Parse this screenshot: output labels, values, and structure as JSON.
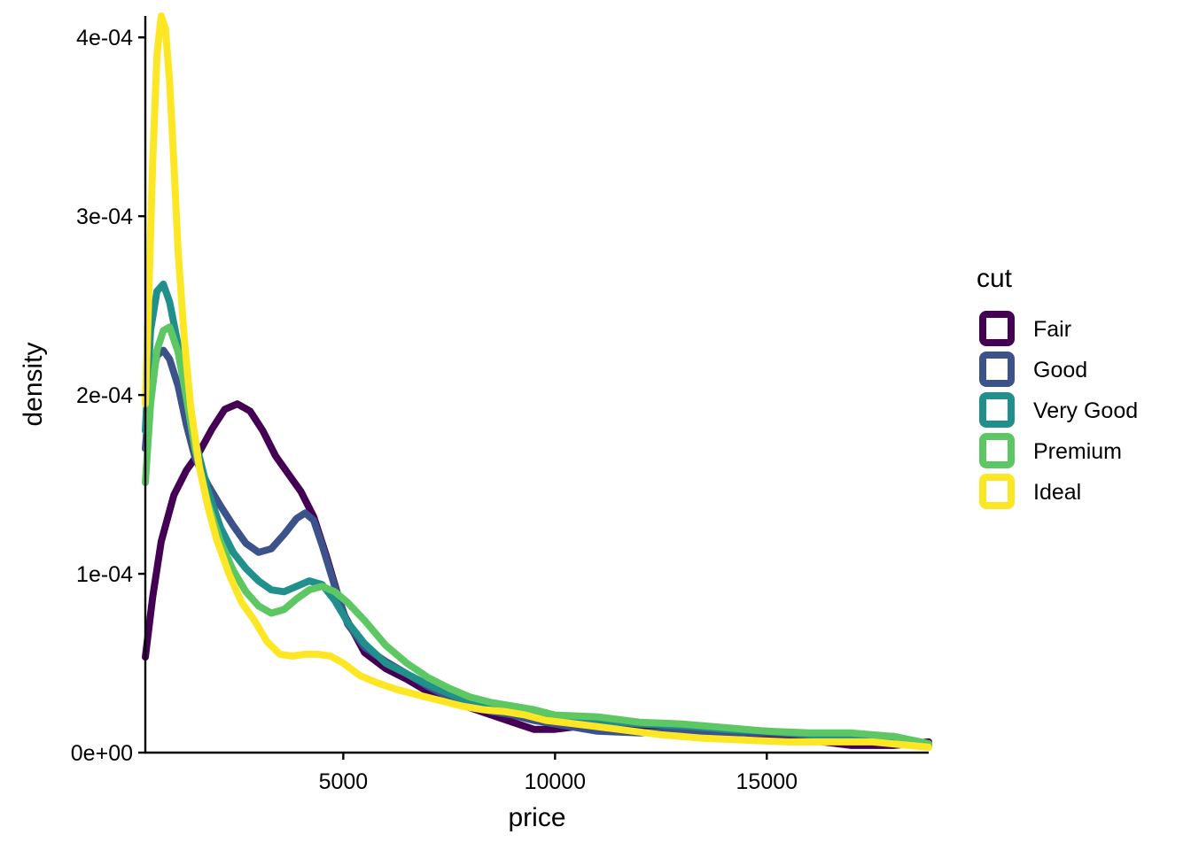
{
  "chart_data": {
    "type": "line",
    "geom": "density",
    "xlabel": "price",
    "ylabel": "density",
    "xlim": [
      326,
      18823
    ],
    "ylim": [
      0,
      0.000412
    ],
    "x_ticks": [
      5000,
      10000,
      15000
    ],
    "x_tick_labels": [
      "5000",
      "10000",
      "15000"
    ],
    "y_ticks": [
      0,
      0.0001,
      0.0002,
      0.0003,
      0.0004
    ],
    "y_tick_labels": [
      "0e+00",
      "1e-04",
      "2e-04",
      "3e-04",
      "4e-04"
    ],
    "grid": false,
    "legend": {
      "title": "cut",
      "position": "right"
    },
    "series": [
      {
        "name": "Fair",
        "color": "#440154",
        "points": [
          [
            326,
            5.34e-05
          ],
          [
            500,
            8.7e-05
          ],
          [
            700,
            0.000118
          ],
          [
            1000,
            0.000144
          ],
          [
            1300,
            0.000158
          ],
          [
            1600,
            0.000168
          ],
          [
            1900,
            0.000181
          ],
          [
            2200,
            0.000192
          ],
          [
            2500,
            0.000195
          ],
          [
            2800,
            0.000191
          ],
          [
            3100,
            0.00018
          ],
          [
            3400,
            0.000166
          ],
          [
            3700,
            0.000156
          ],
          [
            4000,
            0.000146
          ],
          [
            4300,
            0.000132
          ],
          [
            4600,
            0.00011
          ],
          [
            5000,
            7.8e-05
          ],
          [
            5500,
            5.6e-05
          ],
          [
            6000,
            4.7e-05
          ],
          [
            6500,
            4.1e-05
          ],
          [
            7000,
            3.4e-05
          ],
          [
            7500,
            2.9e-05
          ],
          [
            8000,
            2.5e-05
          ],
          [
            8500,
            2.1e-05
          ],
          [
            9000,
            1.7e-05
          ],
          [
            9500,
            1.3e-05
          ],
          [
            10000,
            1.3e-05
          ],
          [
            11000,
            1.6e-05
          ],
          [
            12000,
            1.5e-05
          ],
          [
            13000,
            1.4e-05
          ],
          [
            14000,
            1.2e-05
          ],
          [
            15000,
            1e-05
          ],
          [
            16000,
            7e-06
          ],
          [
            17000,
            4e-06
          ],
          [
            18000,
            4e-06
          ],
          [
            18823,
            6e-06
          ]
        ]
      },
      {
        "name": "Good",
        "color": "#3B528B",
        "points": [
          [
            326,
            0.00017
          ],
          [
            450,
            0.000205
          ],
          [
            600,
            0.000222
          ],
          [
            750,
            0.000225
          ],
          [
            900,
            0.00022
          ],
          [
            1100,
            0.000205
          ],
          [
            1300,
            0.000183
          ],
          [
            1500,
            0.000165
          ],
          [
            1800,
            0.00015
          ],
          [
            2100,
            0.000138
          ],
          [
            2400,
            0.000127
          ],
          [
            2700,
            0.000117
          ],
          [
            3000,
            0.000112
          ],
          [
            3300,
            0.000114
          ],
          [
            3600,
            0.000122
          ],
          [
            3900,
            0.000131
          ],
          [
            4100,
            0.000134
          ],
          [
            4300,
            0.00013
          ],
          [
            4500,
            0.000116
          ],
          [
            4800,
            9.3e-05
          ],
          [
            5100,
            7.2e-05
          ],
          [
            5500,
            5.9e-05
          ],
          [
            6000,
            5.1e-05
          ],
          [
            6500,
            4.4e-05
          ],
          [
            7000,
            3.7e-05
          ],
          [
            7500,
            3.1e-05
          ],
          [
            8000,
            2.6e-05
          ],
          [
            8500,
            2.3e-05
          ],
          [
            9000,
            2.1e-05
          ],
          [
            9500,
            1.8e-05
          ],
          [
            10000,
            1.6e-05
          ],
          [
            11000,
            1.2e-05
          ],
          [
            12000,
            1.1e-05
          ],
          [
            13000,
            1.2e-05
          ],
          [
            14000,
            1.1e-05
          ],
          [
            15000,
            1.1e-05
          ],
          [
            16000,
            1e-05
          ],
          [
            17000,
            9e-06
          ],
          [
            18000,
            8e-06
          ],
          [
            18823,
            4e-06
          ]
        ]
      },
      {
        "name": "Very Good",
        "color": "#21908C",
        "points": [
          [
            326,
            0.00018
          ],
          [
            450,
            0.000236
          ],
          [
            600,
            0.000258
          ],
          [
            750,
            0.000262
          ],
          [
            900,
            0.000252
          ],
          [
            1100,
            0.000228
          ],
          [
            1300,
            0.0002
          ],
          [
            1500,
            0.000175
          ],
          [
            1800,
            0.000147
          ],
          [
            2100,
            0.000126
          ],
          [
            2400,
            0.000112
          ],
          [
            2700,
            0.000103
          ],
          [
            3000,
            9.6e-05
          ],
          [
            3300,
            9.1e-05
          ],
          [
            3600,
            9e-05
          ],
          [
            3900,
            9.3e-05
          ],
          [
            4200,
            9.6e-05
          ],
          [
            4500,
            9.4e-05
          ],
          [
            4800,
            8.5e-05
          ],
          [
            5100,
            7.3e-05
          ],
          [
            5500,
            6.1e-05
          ],
          [
            6000,
            5e-05
          ],
          [
            6500,
            4.4e-05
          ],
          [
            7000,
            3.8e-05
          ],
          [
            7500,
            3.3e-05
          ],
          [
            8000,
            2.8e-05
          ],
          [
            8500,
            2.5e-05
          ],
          [
            9000,
            2.3e-05
          ],
          [
            9500,
            2.1e-05
          ],
          [
            10000,
            1.9e-05
          ],
          [
            11000,
            1.8e-05
          ],
          [
            12000,
            1.6e-05
          ],
          [
            13000,
            1.5e-05
          ],
          [
            14000,
            1.3e-05
          ],
          [
            15000,
            1.2e-05
          ],
          [
            16000,
            1e-05
          ],
          [
            17000,
            9e-06
          ],
          [
            18000,
            9e-06
          ],
          [
            18823,
            5e-06
          ]
        ]
      },
      {
        "name": "Premium",
        "color": "#5DC863",
        "points": [
          [
            326,
            0.000151
          ],
          [
            450,
            0.000195
          ],
          [
            600,
            0.000225
          ],
          [
            750,
            0.000236
          ],
          [
            900,
            0.000238
          ],
          [
            1100,
            0.000224
          ],
          [
            1300,
            0.000198
          ],
          [
            1500,
            0.00017
          ],
          [
            1800,
            0.00014
          ],
          [
            2100,
            0.000118
          ],
          [
            2400,
            0.000102
          ],
          [
            2700,
            9e-05
          ],
          [
            3000,
            8.2e-05
          ],
          [
            3300,
            7.8e-05
          ],
          [
            3600,
            8e-05
          ],
          [
            3900,
            8.6e-05
          ],
          [
            4200,
            9.1e-05
          ],
          [
            4500,
            9.3e-05
          ],
          [
            4800,
            9e-05
          ],
          [
            5100,
            8.4e-05
          ],
          [
            5500,
            7.4e-05
          ],
          [
            6000,
            6e-05
          ],
          [
            6500,
            5e-05
          ],
          [
            7000,
            4.2e-05
          ],
          [
            7500,
            3.6e-05
          ],
          [
            8000,
            3.1e-05
          ],
          [
            8500,
            2.8e-05
          ],
          [
            9000,
            2.6e-05
          ],
          [
            9500,
            2.4e-05
          ],
          [
            10000,
            2.1e-05
          ],
          [
            11000,
            2e-05
          ],
          [
            12000,
            1.7e-05
          ],
          [
            13000,
            1.6e-05
          ],
          [
            14000,
            1.4e-05
          ],
          [
            15000,
            1.2e-05
          ],
          [
            16000,
            1.1e-05
          ],
          [
            17000,
            1.1e-05
          ],
          [
            18000,
            9e-06
          ],
          [
            18823,
            5e-06
          ]
        ]
      },
      {
        "name": "Ideal",
        "color": "#FDE725",
        "points": [
          [
            326,
            0.000195
          ],
          [
            400,
            0.00025
          ],
          [
            500,
            0.00033
          ],
          [
            600,
            0.00039
          ],
          [
            700,
            0.000412
          ],
          [
            800,
            0.000405
          ],
          [
            900,
            0.000375
          ],
          [
            1000,
            0.00033
          ],
          [
            1100,
            0.00028
          ],
          [
            1250,
            0.00023
          ],
          [
            1400,
            0.000193
          ],
          [
            1600,
            0.00016
          ],
          [
            1800,
            0.000138
          ],
          [
            2000,
            0.00012
          ],
          [
            2300,
            0.0001
          ],
          [
            2600,
            8.4e-05
          ],
          [
            2900,
            7.4e-05
          ],
          [
            3200,
            6.2e-05
          ],
          [
            3500,
            5.5e-05
          ],
          [
            3800,
            5.4e-05
          ],
          [
            4100,
            5.5e-05
          ],
          [
            4400,
            5.5e-05
          ],
          [
            4700,
            5.4e-05
          ],
          [
            5000,
            5e-05
          ],
          [
            5400,
            4.3e-05
          ],
          [
            5800,
            3.9e-05
          ],
          [
            6300,
            3.5e-05
          ],
          [
            6800,
            3.2e-05
          ],
          [
            7300,
            2.9e-05
          ],
          [
            7800,
            2.6e-05
          ],
          [
            8300,
            2.4e-05
          ],
          [
            8800,
            2.3e-05
          ],
          [
            9300,
            2.1e-05
          ],
          [
            9800,
            1.8e-05
          ],
          [
            10500,
            1.6e-05
          ],
          [
            11500,
            1.3e-05
          ],
          [
            12500,
            1e-05
          ],
          [
            13500,
            8e-06
          ],
          [
            14500,
            7e-06
          ],
          [
            15500,
            6e-06
          ],
          [
            16500,
            6e-06
          ],
          [
            17500,
            6e-06
          ],
          [
            18823,
            3e-06
          ]
        ]
      }
    ]
  }
}
